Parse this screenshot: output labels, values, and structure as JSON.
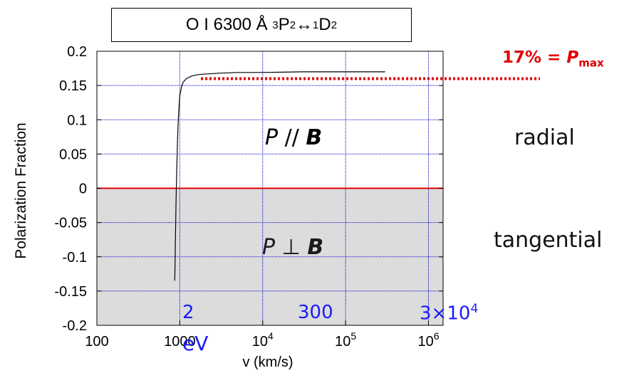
{
  "title": {
    "prefix": "O I 6300 Å ",
    "l1_sup": "3",
    "l1_main": "P",
    "l1_sub": "2",
    "arrow": "↔",
    "l2_sup": "1",
    "l2_main": "D",
    "l2_sub": "2"
  },
  "annotation_pmax": {
    "text": "17% = ",
    "symbol": "P",
    "sub": "max"
  },
  "region_labels": {
    "upper": "radial",
    "lower": "tangential"
  },
  "inner_labels": {
    "parallel": {
      "symbol": "P",
      "relation": " // ",
      "field": "B"
    },
    "perpendicular": {
      "symbol": "P",
      "relation": " ⊥ ",
      "field": "B"
    }
  },
  "energy_axis": {
    "ticks": [
      {
        "label": "2"
      },
      {
        "label": "300"
      },
      {
        "label": "3",
        "times": "×",
        "base": "10",
        "exp": "4"
      }
    ],
    "unit": "eV"
  },
  "colors": {
    "curve": "#000000",
    "zero_line": "#e00000",
    "pmax_line": "#e00000",
    "grid": "#0000cc",
    "negative_fill": "#dcdcdc",
    "energy_labels": "#1a1aff"
  },
  "chart_data": {
    "type": "line",
    "xlabel": "v (km/s)",
    "ylabel": "Polarization Fraction",
    "xscale": "log",
    "xlim": [
      100,
      1500000
    ],
    "ylim": [
      -0.2,
      0.2
    ],
    "grid": true,
    "x_ticks": [
      {
        "value": 100,
        "label": "100"
      },
      {
        "value": 1000,
        "label": "1000"
      },
      {
        "value": 10000,
        "base": "10",
        "exp": "4"
      },
      {
        "value": 100000,
        "base": "10",
        "exp": "5"
      },
      {
        "value": 1000000,
        "base": "10",
        "exp": "6"
      }
    ],
    "y_ticks": [
      {
        "value": 0.2,
        "label": "0.2"
      },
      {
        "value": 0.15,
        "label": "0.15"
      },
      {
        "value": 0.1,
        "label": "0.1"
      },
      {
        "value": 0.05,
        "label": "0.05"
      },
      {
        "value": 0,
        "label": "0"
      },
      {
        "value": -0.05,
        "label": "-0.05"
      },
      {
        "value": -0.1,
        "label": "-0.1"
      },
      {
        "value": -0.15,
        "label": "-0.15"
      },
      {
        "value": -0.2,
        "label": "-0.2"
      }
    ],
    "series": [
      {
        "x": [
          870,
          880,
          890,
          900,
          920,
          940,
          960,
          980,
          1000,
          1050,
          1100,
          1200,
          1400,
          1700,
          2200,
          3000,
          5000,
          10000,
          30000,
          100000,
          300000
        ],
        "y": [
          -0.135,
          -0.1,
          -0.06,
          -0.02,
          0.03,
          0.07,
          0.1,
          0.12,
          0.135,
          0.148,
          0.155,
          0.16,
          0.164,
          0.166,
          0.167,
          0.168,
          0.169,
          0.169,
          0.17,
          0.17,
          0.17
        ]
      }
    ],
    "reference_lines": [
      {
        "y": 0,
        "style": "solid"
      },
      {
        "y": 0.16,
        "x_start": 1800,
        "style": "dotted"
      }
    ],
    "energy_axis_positions_v": [
      920,
      11000,
      1000000
    ]
  }
}
